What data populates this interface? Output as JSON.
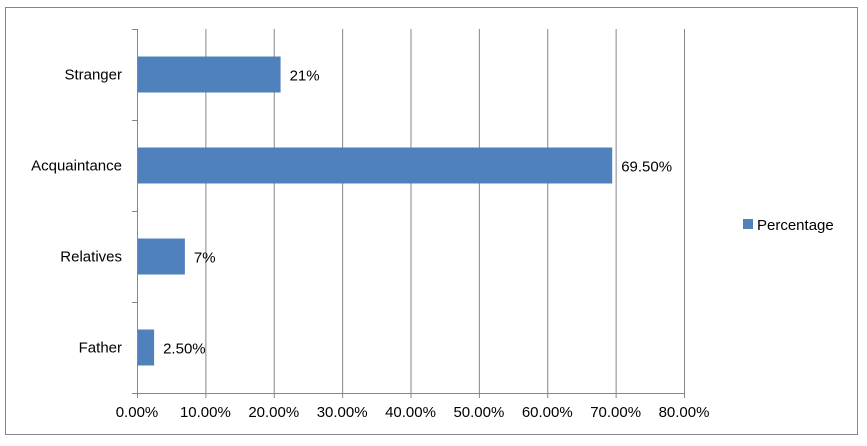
{
  "chart_data": {
    "type": "bar",
    "orientation": "horizontal",
    "categories": [
      "Stranger",
      "Acquaintance",
      "Relatives",
      "Father"
    ],
    "series": [
      {
        "name": "Percentage",
        "values": [
          21,
          69.5,
          7,
          2.5
        ],
        "data_labels": [
          "21%",
          "69.50%",
          "7%",
          "2.50%"
        ],
        "color": "#4F81BD"
      }
    ],
    "xlim": [
      0,
      80
    ],
    "x_ticks": [
      0,
      10,
      20,
      30,
      40,
      50,
      60,
      70,
      80
    ],
    "x_tick_labels": [
      "0.00%",
      "10.00%",
      "20.00%",
      "30.00%",
      "40.00%",
      "50.00%",
      "60.00%",
      "70.00%",
      "80.00%"
    ],
    "title": "",
    "xlabel": "",
    "ylabel": "",
    "grid": "vertical major gridlines",
    "legend": {
      "position": "right",
      "entries": [
        "Percentage"
      ]
    }
  },
  "colors": {
    "bar": "#4F81BD",
    "gridline": "#868686",
    "frame": "#868686"
  }
}
